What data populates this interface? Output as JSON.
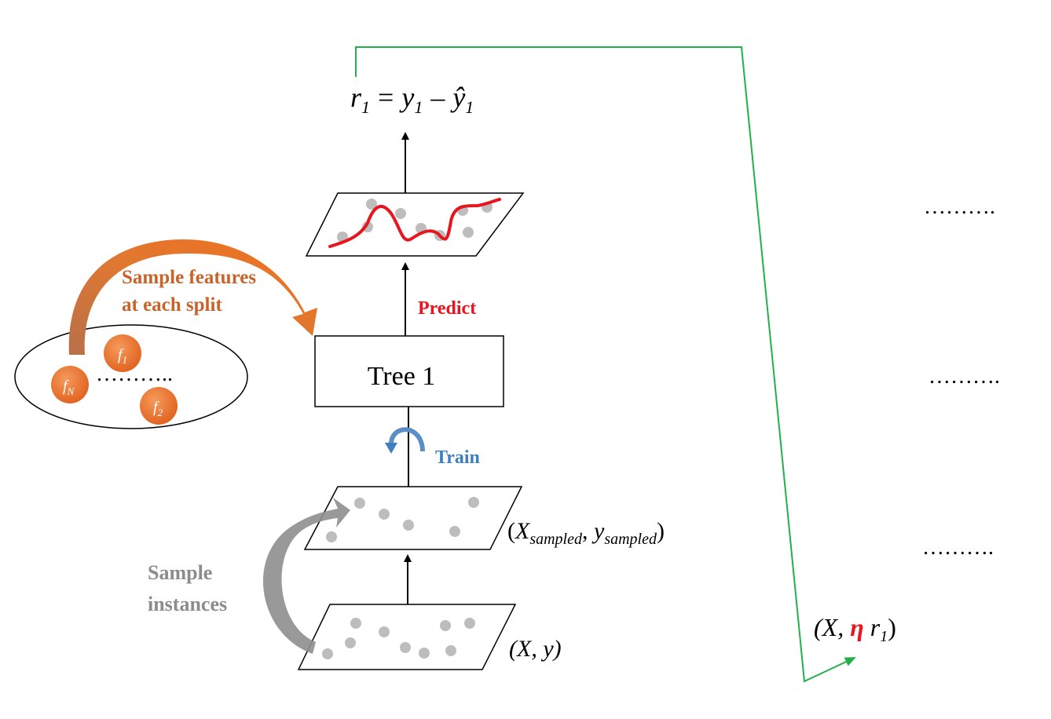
{
  "residual_formula": {
    "r": "r",
    "r_sub": "1",
    "equals": "=",
    "y": "y",
    "y_sub": "1",
    "minus": "–",
    "yhat": "ŷ",
    "yhat_sub": "1"
  },
  "tree_label": "Tree 1",
  "predict_label": "Predict",
  "train_label": "Train",
  "sample_features_label": {
    "line1": "Sample features",
    "line2": "at each split"
  },
  "sample_instances_label": {
    "line1": "Sample",
    "line2": "instances"
  },
  "features": {
    "f1": {
      "base": "f",
      "sub": "1"
    },
    "f2": {
      "base": "f",
      "sub": "2"
    },
    "fN": {
      "base": "f",
      "sub": "N"
    },
    "dots": "……….."
  },
  "sampled_data_label": {
    "open": "(",
    "X": "X",
    "X_sub": "sampled",
    "comma": ", ",
    "y": "y",
    "y_sub": "sampled",
    "close": ")"
  },
  "full_data_label": {
    "text": "(X, y)"
  },
  "next_input_label": {
    "open": "(X, ",
    "eta": "η",
    "space": " ",
    "r": "r",
    "r_sub": "1",
    "close": ")"
  },
  "continuation_dots": [
    "……….",
    "……….",
    "………."
  ],
  "colors": {
    "orange": "#E07030",
    "orange_text": "#C8642A",
    "red": "#E8141E",
    "blue": "#3F7FBF",
    "gray_text": "#8C8C8C",
    "green": "#22B04A",
    "point_gray": "#BDBDBD"
  }
}
